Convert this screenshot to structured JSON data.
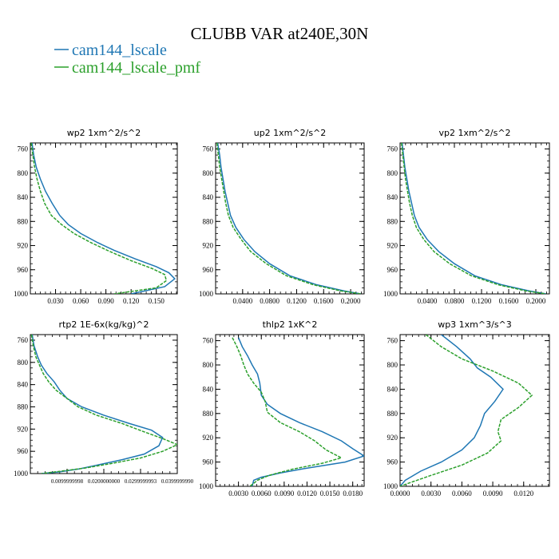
{
  "figure": {
    "title": "CLUBB VAR at240E,30N",
    "legend": [
      {
        "label": "cam144_lscale",
        "color": "#1f77b4",
        "dash": "solid"
      },
      {
        "label": "cam144_lscale_pmf",
        "color": "#2ca02c",
        "dash": "dashed"
      }
    ]
  },
  "chart_data": [
    {
      "type": "line",
      "title": "wp2  1xm^2/s^2",
      "xlim": [
        0.0,
        0.175
      ],
      "ylim": [
        1000,
        750
      ],
      "yticks": [
        760,
        800,
        840,
        880,
        920,
        960,
        1000
      ],
      "ytick_labels": [
        "760",
        "800",
        "840",
        "880",
        "920",
        "960",
        "1000"
      ],
      "xticks": [
        0.03,
        0.06,
        0.09,
        0.12,
        0.15
      ],
      "xtick_labels": [
        "0.030",
        "0.060",
        "0.090",
        "0.120",
        "0.150"
      ],
      "series": [
        {
          "name": "cam144_lscale",
          "color": "#1f77b4",
          "dash": "solid",
          "points": [
            [
              0.002,
              750
            ],
            [
              0.004,
              770
            ],
            [
              0.007,
              790
            ],
            [
              0.012,
              810
            ],
            [
              0.018,
              830
            ],
            [
              0.026,
              850
            ],
            [
              0.035,
              870
            ],
            [
              0.045,
              885
            ],
            [
              0.06,
              900
            ],
            [
              0.08,
              915
            ],
            [
              0.1,
              928
            ],
            [
              0.125,
              942
            ],
            [
              0.15,
              955
            ],
            [
              0.165,
              965
            ],
            [
              0.172,
              975
            ],
            [
              0.16,
              988
            ],
            [
              0.12,
              1000
            ]
          ]
        },
        {
          "name": "cam144_lscale_pmf",
          "color": "#2ca02c",
          "dash": "dashed",
          "points": [
            [
              0.001,
              750
            ],
            [
              0.003,
              770
            ],
            [
              0.005,
              790
            ],
            [
              0.008,
              810
            ],
            [
              0.012,
              830
            ],
            [
              0.017,
              850
            ],
            [
              0.025,
              870
            ],
            [
              0.037,
              885
            ],
            [
              0.052,
              900
            ],
            [
              0.072,
              915
            ],
            [
              0.095,
              930
            ],
            [
              0.12,
              945
            ],
            [
              0.145,
              958
            ],
            [
              0.16,
              968
            ],
            [
              0.162,
              978
            ],
            [
              0.15,
              990
            ],
            [
              0.1,
              1000
            ]
          ]
        }
      ]
    },
    {
      "type": "line",
      "title": "up2  1xm^2/s^2",
      "xlim": [
        0.0,
        0.22
      ],
      "ylim": [
        1000,
        750
      ],
      "yticks": [
        760,
        800,
        840,
        880,
        920,
        960,
        1000
      ],
      "ytick_labels": [
        "760",
        "800",
        "840",
        "880",
        "920",
        "960",
        "1000"
      ],
      "xticks": [
        0.04,
        0.08,
        0.12,
        0.16,
        0.2
      ],
      "xtick_labels": [
        "0.0400",
        "0.0800",
        "0.1200",
        "0.1600",
        "0.2000"
      ],
      "series": [
        {
          "name": "cam144_lscale",
          "color": "#1f77b4",
          "dash": "solid",
          "points": [
            [
              0.003,
              750
            ],
            [
              0.006,
              770
            ],
            [
              0.008,
              790
            ],
            [
              0.011,
              810
            ],
            [
              0.014,
              830
            ],
            [
              0.018,
              850
            ],
            [
              0.022,
              870
            ],
            [
              0.03,
              890
            ],
            [
              0.042,
              910
            ],
            [
              0.058,
              930
            ],
            [
              0.08,
              950
            ],
            [
              0.11,
              970
            ],
            [
              0.15,
              985
            ],
            [
              0.19,
              995
            ],
            [
              0.215,
              1000
            ]
          ]
        },
        {
          "name": "cam144_lscale_pmf",
          "color": "#2ca02c",
          "dash": "dashed",
          "points": [
            [
              0.002,
              750
            ],
            [
              0.004,
              770
            ],
            [
              0.006,
              790
            ],
            [
              0.009,
              810
            ],
            [
              0.012,
              830
            ],
            [
              0.015,
              850
            ],
            [
              0.019,
              870
            ],
            [
              0.026,
              890
            ],
            [
              0.038,
              910
            ],
            [
              0.052,
              930
            ],
            [
              0.075,
              950
            ],
            [
              0.105,
              970
            ],
            [
              0.145,
              985
            ],
            [
              0.185,
              995
            ],
            [
              0.215,
              1000
            ]
          ]
        }
      ]
    },
    {
      "type": "line",
      "title": "vp2  1xm^2/s^2",
      "xlim": [
        0.0,
        0.22
      ],
      "ylim": [
        1000,
        750
      ],
      "yticks": [
        760,
        800,
        840,
        880,
        920,
        960,
        1000
      ],
      "ytick_labels": [
        "760",
        "800",
        "840",
        "880",
        "920",
        "960",
        "1000"
      ],
      "xticks": [
        0.04,
        0.08,
        0.12,
        0.16,
        0.2
      ],
      "xtick_labels": [
        "0.0400",
        "0.0800",
        "0.1200",
        "0.1600",
        "0.2000"
      ],
      "series": [
        {
          "name": "cam144_lscale",
          "color": "#1f77b4",
          "dash": "solid",
          "points": [
            [
              0.003,
              750
            ],
            [
              0.005,
              770
            ],
            [
              0.007,
              790
            ],
            [
              0.01,
              810
            ],
            [
              0.013,
              830
            ],
            [
              0.017,
              850
            ],
            [
              0.021,
              870
            ],
            [
              0.028,
              890
            ],
            [
              0.04,
              910
            ],
            [
              0.057,
              930
            ],
            [
              0.08,
              950
            ],
            [
              0.11,
              970
            ],
            [
              0.15,
              985
            ],
            [
              0.19,
              995
            ],
            [
              0.215,
              1000
            ]
          ]
        },
        {
          "name": "cam144_lscale_pmf",
          "color": "#2ca02c",
          "dash": "dashed",
          "points": [
            [
              0.002,
              750
            ],
            [
              0.004,
              770
            ],
            [
              0.006,
              790
            ],
            [
              0.008,
              810
            ],
            [
              0.011,
              830
            ],
            [
              0.014,
              850
            ],
            [
              0.018,
              870
            ],
            [
              0.024,
              890
            ],
            [
              0.035,
              910
            ],
            [
              0.05,
              930
            ],
            [
              0.073,
              950
            ],
            [
              0.105,
              970
            ],
            [
              0.145,
              985
            ],
            [
              0.185,
              995
            ],
            [
              0.215,
              1000
            ]
          ]
        }
      ]
    },
    {
      "type": "line",
      "title": "rtp2  1E-6x(kg/kg)^2",
      "xlim": [
        0.0,
        0.04
      ],
      "ylim": [
        1000,
        750
      ],
      "yticks": [
        760,
        800,
        840,
        880,
        920,
        960,
        1000
      ],
      "ytick_labels": [
        "760",
        "800",
        "840",
        "880",
        "920",
        "960",
        "1000"
      ],
      "xticks": [
        0.01,
        0.02,
        0.03,
        0.04
      ],
      "xtick_labels": [
        "0.0099999998",
        "0.0200000000",
        "0.0299999993",
        "0.0399999990"
      ],
      "series": [
        {
          "name": "cam144_lscale",
          "color": "#1f77b4",
          "dash": "solid",
          "points": [
            [
              0.0005,
              750
            ],
            [
              0.001,
              770
            ],
            [
              0.002,
              790
            ],
            [
              0.003,
              805
            ],
            [
              0.0045,
              820
            ],
            [
              0.0065,
              835
            ],
            [
              0.008,
              850
            ],
            [
              0.01,
              865
            ],
            [
              0.014,
              880
            ],
            [
              0.02,
              895
            ],
            [
              0.027,
              910
            ],
            [
              0.033,
              922
            ],
            [
              0.036,
              935
            ],
            [
              0.035,
              950
            ],
            [
              0.031,
              965
            ],
            [
              0.025,
              975
            ],
            [
              0.018,
              985
            ],
            [
              0.013,
              992
            ],
            [
              0.008,
              997
            ],
            [
              0.003,
              1000
            ]
          ]
        },
        {
          "name": "cam144_lscale_pmf",
          "color": "#2ca02c",
          "dash": "dashed",
          "points": [
            [
              0.0003,
              750
            ],
            [
              0.0008,
              770
            ],
            [
              0.0015,
              790
            ],
            [
              0.0025,
              805
            ],
            [
              0.0035,
              820
            ],
            [
              0.005,
              835
            ],
            [
              0.007,
              850
            ],
            [
              0.01,
              865
            ],
            [
              0.013,
              880
            ],
            [
              0.018,
              895
            ],
            [
              0.025,
              910
            ],
            [
              0.031,
              925
            ],
            [
              0.036,
              937
            ],
            [
              0.04,
              948
            ],
            [
              0.036,
              960
            ],
            [
              0.03,
              972
            ],
            [
              0.022,
              982
            ],
            [
              0.015,
              990
            ],
            [
              0.008,
              996
            ],
            [
              0.003,
              1000
            ]
          ]
        }
      ]
    },
    {
      "type": "line",
      "title": "thlp2  1xK^2",
      "xlim": [
        0.0,
        0.0195
      ],
      "ylim": [
        1000,
        750
      ],
      "yticks": [
        760,
        800,
        840,
        880,
        920,
        960,
        1000
      ],
      "ytick_labels": [
        "760",
        "800",
        "840",
        "880",
        "920",
        "960",
        "1000"
      ],
      "xticks": [
        0.003,
        0.006,
        0.009,
        0.012,
        0.015,
        0.018
      ],
      "xtick_labels": [
        "0.0030",
        "0.0060",
        "0.0090",
        "0.0120",
        "0.0150",
        "0.0180"
      ],
      "series": [
        {
          "name": "cam144_lscale",
          "color": "#1f77b4",
          "dash": "solid",
          "points": [
            [
              0.003,
              755
            ],
            [
              0.0035,
              770
            ],
            [
              0.0042,
              785
            ],
            [
              0.0048,
              800
            ],
            [
              0.0055,
              815
            ],
            [
              0.0058,
              830
            ],
            [
              0.006,
              850
            ],
            [
              0.0068,
              865
            ],
            [
              0.0085,
              880
            ],
            [
              0.011,
              895
            ],
            [
              0.014,
              910
            ],
            [
              0.0165,
              925
            ],
            [
              0.018,
              938
            ],
            [
              0.0195,
              950
            ],
            [
              0.017,
              960
            ],
            [
              0.012,
              970
            ],
            [
              0.0085,
              978
            ],
            [
              0.006,
              985
            ],
            [
              0.005,
              990
            ],
            [
              0.0048,
              1000
            ]
          ]
        },
        {
          "name": "cam144_lscale_pmf",
          "color": "#2ca02c",
          "dash": "dashed",
          "points": [
            [
              0.0022,
              755
            ],
            [
              0.0028,
              770
            ],
            [
              0.0033,
              785
            ],
            [
              0.0037,
              800
            ],
            [
              0.0042,
              815
            ],
            [
              0.005,
              830
            ],
            [
              0.006,
              845
            ],
            [
              0.0065,
              860
            ],
            [
              0.0068,
              878
            ],
            [
              0.0085,
              895
            ],
            [
              0.011,
              910
            ],
            [
              0.013,
              925
            ],
            [
              0.0145,
              940
            ],
            [
              0.0165,
              953
            ],
            [
              0.014,
              962
            ],
            [
              0.01,
              972
            ],
            [
              0.007,
              982
            ],
            [
              0.0055,
              990
            ],
            [
              0.0045,
              1000
            ]
          ]
        }
      ]
    },
    {
      "type": "line",
      "title": "wp3  1xm^3/s^3",
      "xlim": [
        0.0,
        0.0145
      ],
      "ylim": [
        1000,
        750
      ],
      "yticks": [
        760,
        800,
        840,
        880,
        920,
        960,
        1000
      ],
      "ytick_labels": [
        "760",
        "800",
        "840",
        "880",
        "920",
        "960",
        "1000"
      ],
      "xticks": [
        0.0,
        0.003,
        0.006,
        0.009,
        0.012
      ],
      "xtick_labels": [
        "0.0000",
        "0.0030",
        "0.0060",
        "0.0090",
        "0.0120"
      ],
      "series": [
        {
          "name": "cam144_lscale",
          "color": "#1f77b4",
          "dash": "solid",
          "points": [
            [
              0.004,
              750
            ],
            [
              0.0055,
              770
            ],
            [
              0.0068,
              790
            ],
            [
              0.0075,
              805
            ],
            [
              0.0088,
              820
            ],
            [
              0.01,
              840
            ],
            [
              0.0092,
              860
            ],
            [
              0.0082,
              880
            ],
            [
              0.0078,
              900
            ],
            [
              0.0072,
              920
            ],
            [
              0.006,
              940
            ],
            [
              0.004,
              960
            ],
            [
              0.002,
              975
            ],
            [
              0.0005,
              990
            ],
            [
              0.0,
              1000
            ]
          ]
        },
        {
          "name": "cam144_lscale_pmf",
          "color": "#2ca02c",
          "dash": "dashed",
          "points": [
            [
              0.0025,
              750
            ],
            [
              0.004,
              770
            ],
            [
              0.006,
              790
            ],
            [
              0.009,
              810
            ],
            [
              0.0115,
              830
            ],
            [
              0.0128,
              850
            ],
            [
              0.0115,
              870
            ],
            [
              0.0098,
              890
            ],
            [
              0.0095,
              910
            ],
            [
              0.0098,
              925
            ],
            [
              0.0085,
              945
            ],
            [
              0.006,
              965
            ],
            [
              0.003,
              982
            ],
            [
              0.0008,
              995
            ],
            [
              0.0,
              1000
            ]
          ]
        }
      ]
    }
  ]
}
